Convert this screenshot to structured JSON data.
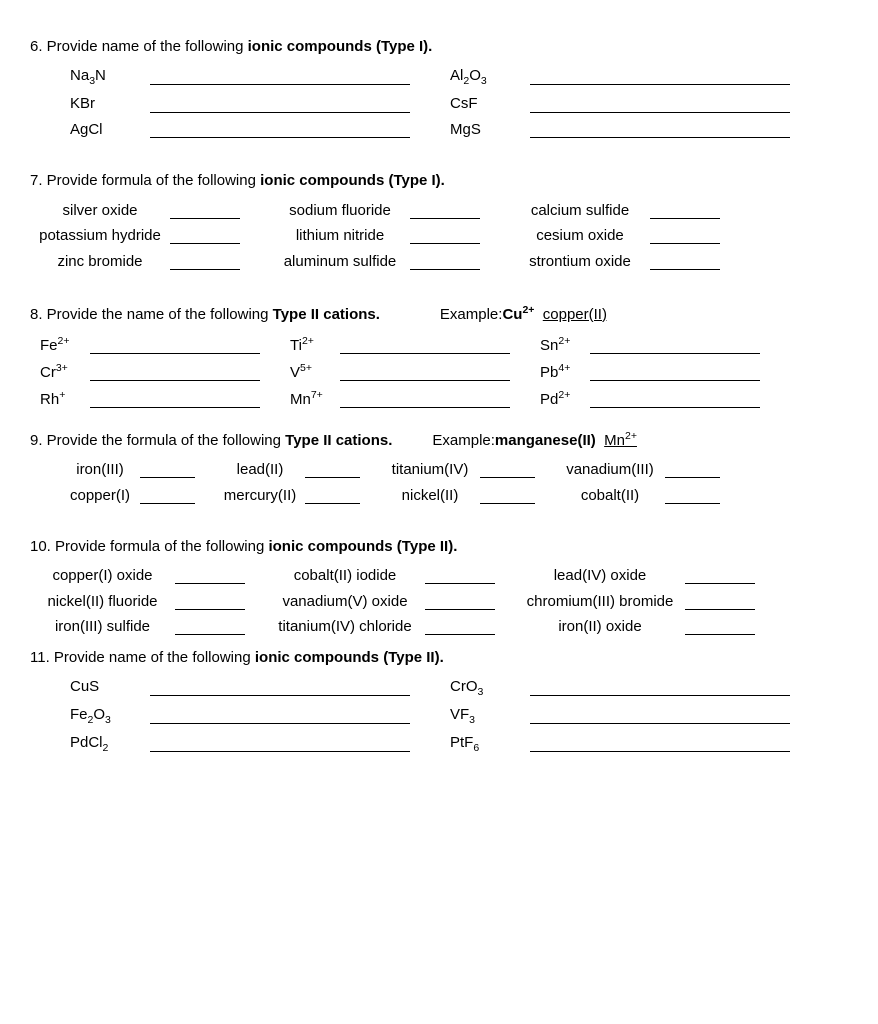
{
  "q6": {
    "prompt_a": "6. Provide name of the following ",
    "prompt_b": "ionic compounds (Type I).",
    "rows": [
      {
        "l1": "Na<sub>3</sub>N",
        "l2": "Al<sub>2</sub>O<sub>3</sub>"
      },
      {
        "l1": "KBr",
        "l2": "CsF"
      },
      {
        "l1": "AgCl",
        "l2": "MgS"
      }
    ]
  },
  "q7": {
    "prompt_a": "7. Provide formula of the following ",
    "prompt_b": "ionic compounds (Type I).",
    "rows": [
      {
        "c1": "silver oxide",
        "c2": "sodium fluoride",
        "c3": "calcium sulfide"
      },
      {
        "c1": "potassium hydride",
        "c2": "lithium nitride",
        "c3": "cesium oxide"
      },
      {
        "c1": "zinc bromide",
        "c2": "aluminum sulfide",
        "c3": "strontium oxide"
      }
    ]
  },
  "q8": {
    "prompt_a": "8. Provide the name of the following ",
    "prompt_b": "Type II cations.",
    "example_label": "Example: ",
    "example_bold": "Cu<sup>2+</sup>",
    "example_ans": "copper(II)",
    "rows": [
      {
        "c1": "Fe<sup>2+</sup>",
        "c2": "Ti<sup>2+</sup>",
        "c3": "Sn<sup>2+</sup>"
      },
      {
        "c1": "Cr<sup>3+</sup>",
        "c2": "V<sup>5+</sup>",
        "c3": "Pb<sup>4+</sup>"
      },
      {
        "c1": "Rh<sup>+</sup>",
        "c2": "Mn<sup>7+</sup>",
        "c3": "Pd<sup>2+</sup>"
      }
    ]
  },
  "q9": {
    "prompt_a": "9. Provide the formula of the following ",
    "prompt_b": "Type II cations.",
    "example_label": "Example: ",
    "example_bold": "manganese(II)",
    "example_ans": "Mn<sup>2+</sup>",
    "rows": [
      {
        "c1": "iron(III)",
        "c2": "lead(II)",
        "c3": "titanium(IV)",
        "c4": "vanadium(III)"
      },
      {
        "c1": "copper(I)",
        "c2": "mercury(II)",
        "c3": "nickel(II)",
        "c4": "cobalt(II)"
      }
    ]
  },
  "q10": {
    "prompt_a": "10. Provide formula of the following ",
    "prompt_b": "ionic compounds (Type II).",
    "rows": [
      {
        "c1": "copper(I) oxide",
        "c2": "cobalt(II) iodide",
        "c3": "lead(IV) oxide"
      },
      {
        "c1": "nickel(II) fluoride",
        "c2": "vanadium(V) oxide",
        "c3": "chromium(III) bromide"
      },
      {
        "c1": "iron(III) sulfide",
        "c2": "titanium(IV) chloride",
        "c3": "iron(II) oxide"
      }
    ]
  },
  "q11": {
    "prompt_a": "11. Provide name of the following ",
    "prompt_b": "ionic compounds (Type II).",
    "rows": [
      {
        "l1": "CuS",
        "l2": "CrO<sub>3</sub>"
      },
      {
        "l1": "Fe<sub>2</sub>O<sub>3</sub>",
        "l2": "VF<sub>3</sub>"
      },
      {
        "l1": "PdCl<sub>2</sub>",
        "l2": "PtF<sub>6</sub>"
      }
    ]
  }
}
